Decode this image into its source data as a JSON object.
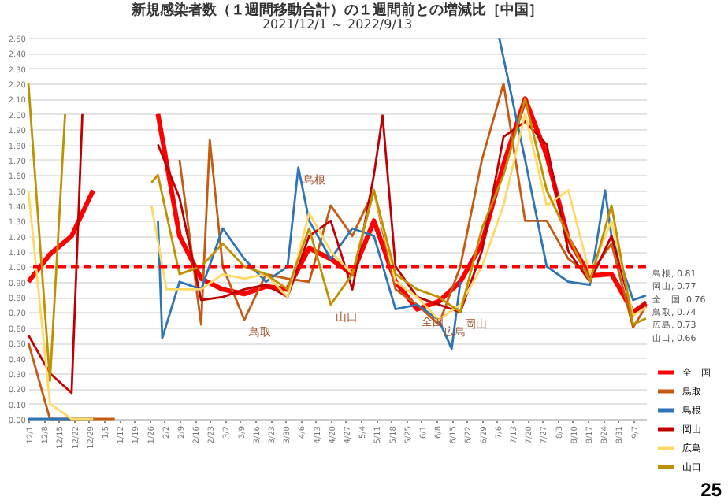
{
  "chart_data": {
    "type": "line",
    "title": "新規感染者数（１週間移動合計）の１週間前との増減比［中国］",
    "subtitle": "2021/12/1 ～ 2022/9/13",
    "x": [
      "2021-12-01",
      "2021-12-11",
      "2021-12-21",
      "2021-12-31",
      "2022-01-10",
      "2022-01-20",
      "2022-01-30",
      "2022-02-09",
      "2022-02-19",
      "2022-03-01",
      "2022-03-11",
      "2022-03-21",
      "2022-03-31",
      "2022-04-10",
      "2022-04-20",
      "2022-04-30",
      "2022-05-10",
      "2022-05-20",
      "2022-05-30",
      "2022-06-09",
      "2022-06-19",
      "2022-06-29",
      "2022-07-09",
      "2022-07-19",
      "2022-07-29",
      "2022-08-08",
      "2022-08-18",
      "2022-08-28",
      "2022-09-07",
      "2022-09-13"
    ],
    "series": [
      {
        "name": "全　国",
        "color": "#ff0000",
        "values": [
          0.9,
          1.08,
          1.2,
          1.5,
          null,
          null,
          2.0,
          1.2,
          0.92,
          0.85,
          0.82,
          0.87,
          0.85,
          1.12,
          1.05,
          0.95,
          1.3,
          0.9,
          0.72,
          0.77,
          0.9,
          1.15,
          1.67,
          2.1,
          1.73,
          1.18,
          0.94,
          0.95,
          0.7,
          0.76
        ],
        "value_labels": [
          null,
          null,
          null,
          null,
          null,
          null,
          null,
          null,
          null,
          null,
          null,
          null,
          null,
          null,
          null,
          null,
          null,
          null,
          null,
          null,
          null,
          null,
          null,
          null,
          null,
          null,
          null,
          null,
          null,
          "全　国, 0.76"
        ]
      },
      {
        "name": "鳥取",
        "color": "#c55a11",
        "x": [
          "2021-12-01",
          "2021-12-11",
          "2021-12-21",
          "2021-12-31",
          "2022-01-10",
          "2022-01-20",
          "2022-01-30",
          "2022-02-09",
          "2022-02-19",
          "2022-02-23",
          "2022-03-01",
          "2022-03-11",
          "2022-03-21",
          "2022-03-31",
          "2022-04-10",
          "2022-04-20",
          "2022-04-30",
          "2022-05-10",
          "2022-05-20",
          "2022-05-30",
          "2022-06-09",
          "2022-06-19",
          "2022-06-29",
          "2022-07-09",
          "2022-07-19",
          "2022-07-29",
          "2022-08-08",
          "2022-08-18",
          "2022-08-28",
          "2022-09-07",
          "2022-09-13"
        ],
        "values": [
          0.5,
          0,
          0,
          0,
          0,
          null,
          null,
          1.7,
          0.62,
          1.83,
          1.0,
          0.65,
          0.95,
          0.92,
          0.9,
          1.4,
          1.2,
          1.5,
          0.85,
          0.75,
          0.62,
          1.0,
          1.7,
          2.2,
          1.3,
          1.3,
          1.05,
          0.95,
          1.15,
          0.6,
          0.74
        ],
        "value_labels": [
          null,
          null,
          null,
          null,
          null,
          null,
          null,
          null,
          null,
          null,
          null,
          null,
          null,
          null,
          null,
          null,
          null,
          null,
          null,
          null,
          null,
          null,
          null,
          null,
          null,
          null,
          null,
          null,
          null,
          null,
          "鳥取, 0.74"
        ]
      },
      {
        "name": "島根",
        "color": "#2e75b6",
        "x": [
          "2021-12-01",
          "2021-12-11",
          "2021-12-21",
          "2021-12-31",
          "2022-01-10",
          "2022-01-20",
          "2022-01-30",
          "2022-02-01",
          "2022-02-09",
          "2022-02-19",
          "2022-03-01",
          "2022-03-11",
          "2022-03-21",
          "2022-03-31",
          "2022-04-05",
          "2022-04-10",
          "2022-04-20",
          "2022-04-30",
          "2022-05-10",
          "2022-05-20",
          "2022-05-30",
          "2022-06-09",
          "2022-06-15",
          "2022-06-19",
          "2022-06-24",
          "2022-07-07",
          "2022-07-19",
          "2022-07-29",
          "2022-08-08",
          "2022-08-18",
          "2022-08-25",
          "2022-08-28",
          "2022-09-07",
          "2022-09-13"
        ],
        "values": [
          0,
          0,
          0,
          0,
          null,
          null,
          1.3,
          0.53,
          0.9,
          0.85,
          1.25,
          1.05,
          0.9,
          1.0,
          1.65,
          1.3,
          1.05,
          1.25,
          1.2,
          0.72,
          0.75,
          0.65,
          0.46,
          0.9,
          null,
          2.5,
          1.7,
          1.0,
          0.9,
          0.88,
          1.5,
          1.2,
          0.78,
          0.81
        ],
        "value_labels": [
          null,
          null,
          null,
          null,
          null,
          null,
          null,
          null,
          null,
          null,
          null,
          null,
          null,
          null,
          null,
          null,
          null,
          null,
          null,
          null,
          null,
          null,
          null,
          null,
          null,
          null,
          null,
          null,
          null,
          null,
          null,
          null,
          null,
          "島根, 0.81"
        ]
      },
      {
        "name": "岡山",
        "color": "#c00000",
        "x": [
          "2021-12-01",
          "2021-12-11",
          "2021-12-21",
          "2021-12-26",
          "2021-12-31",
          "2022-01-10",
          "2022-01-20",
          "2022-01-30",
          "2022-02-09",
          "2022-02-19",
          "2022-03-01",
          "2022-03-11",
          "2022-03-21",
          "2022-03-31",
          "2022-04-10",
          "2022-04-20",
          "2022-04-30",
          "2022-05-10",
          "2022-05-14",
          "2022-05-20",
          "2022-05-30",
          "2022-06-09",
          "2022-06-19",
          "2022-06-29",
          "2022-07-09",
          "2022-07-19",
          "2022-07-29",
          "2022-08-08",
          "2022-08-18",
          "2022-08-28",
          "2022-09-07",
          "2022-09-13"
        ],
        "values": [
          0.55,
          0.3,
          0.17,
          2.0,
          null,
          null,
          null,
          1.8,
          1.45,
          0.78,
          0.8,
          0.85,
          0.88,
          0.8,
          1.2,
          1.3,
          0.85,
          1.6,
          1.99,
          1.0,
          0.8,
          0.75,
          0.7,
          1.1,
          1.85,
          1.95,
          1.8,
          1.1,
          0.9,
          1.2,
          0.68,
          0.77
        ],
        "value_labels": [
          null,
          null,
          null,
          null,
          null,
          null,
          null,
          null,
          null,
          null,
          null,
          null,
          null,
          null,
          null,
          null,
          null,
          null,
          null,
          null,
          null,
          null,
          null,
          null,
          null,
          null,
          null,
          null,
          null,
          null,
          null,
          "岡山, 0.77"
        ]
      },
      {
        "name": "広島",
        "color": "#ffd966",
        "x": [
          "2021-12-01",
          "2021-12-11",
          "2021-12-21",
          "2021-12-31",
          "2022-01-10",
          "2022-01-20",
          "2022-01-27",
          "2022-02-03",
          "2022-02-09",
          "2022-02-19",
          "2022-03-01",
          "2022-03-11",
          "2022-03-21",
          "2022-03-31",
          "2022-04-10",
          "2022-04-20",
          "2022-04-30",
          "2022-05-10",
          "2022-05-20",
          "2022-05-30",
          "2022-06-09",
          "2022-06-19",
          "2022-06-29",
          "2022-07-09",
          "2022-07-19",
          "2022-07-29",
          "2022-08-08",
          "2022-08-18",
          "2022-08-28",
          "2022-09-07",
          "2022-09-13"
        ],
        "values": [
          1.5,
          0.1,
          0,
          0,
          null,
          null,
          1.4,
          0.85,
          0.85,
          0.85,
          0.95,
          0.92,
          0.95,
          0.8,
          1.35,
          1.1,
          0.95,
          1.5,
          0.9,
          0.8,
          0.65,
          0.75,
          1.0,
          1.4,
          2.0,
          1.4,
          1.5,
          0.95,
          1.3,
          0.68,
          0.73
        ],
        "value_labels": [
          null,
          null,
          null,
          null,
          null,
          null,
          null,
          null,
          null,
          null,
          null,
          null,
          null,
          null,
          null,
          null,
          null,
          null,
          null,
          null,
          null,
          null,
          null,
          null,
          null,
          null,
          null,
          null,
          null,
          null,
          "広島, 0.73"
        ]
      },
      {
        "name": "山口",
        "color": "#bf9000",
        "x": [
          "2021-12-01",
          "2021-12-11",
          "2021-12-18",
          "2021-12-21",
          "2021-12-31",
          "2022-01-10",
          "2022-01-20",
          "2022-01-27",
          "2022-01-30",
          "2022-02-09",
          "2022-02-19",
          "2022-03-01",
          "2022-03-11",
          "2022-03-21",
          "2022-03-31",
          "2022-04-10",
          "2022-04-20",
          "2022-04-30",
          "2022-05-10",
          "2022-05-20",
          "2022-05-30",
          "2022-06-09",
          "2022-06-19",
          "2022-06-29",
          "2022-07-09",
          "2022-07-19",
          "2022-07-29",
          "2022-08-08",
          "2022-08-18",
          "2022-08-28",
          "2022-09-07",
          "2022-09-13"
        ],
        "values": [
          2.2,
          0.25,
          2.0,
          null,
          null,
          null,
          null,
          1.55,
          1.6,
          0.95,
          1.0,
          1.15,
          1.0,
          0.95,
          0.85,
          1.25,
          0.75,
          0.95,
          1.5,
          0.95,
          0.85,
          0.8,
          0.7,
          1.25,
          1.6,
          2.1,
          1.5,
          1.2,
          0.9,
          1.4,
          0.62,
          0.66
        ],
        "value_labels": [
          null,
          null,
          null,
          null,
          null,
          null,
          null,
          null,
          null,
          null,
          null,
          null,
          null,
          null,
          null,
          null,
          null,
          null,
          null,
          null,
          null,
          null,
          null,
          null,
          null,
          null,
          null,
          null,
          null,
          null,
          null,
          "山口, 0.66"
        ]
      }
    ],
    "xlim": [
      "2021-12-01",
      "2022-09-13"
    ],
    "xticks": [
      {
        "value": "2021-12-01",
        "label": "12/1"
      },
      {
        "value": "2021-12-08",
        "label": "12/8"
      },
      {
        "value": "2021-12-15",
        "label": "12/15"
      },
      {
        "value": "2021-12-22",
        "label": "12/22"
      },
      {
        "value": "2021-12-29",
        "label": "12/29"
      },
      {
        "value": "2022-01-05",
        "label": "1/5"
      },
      {
        "value": "2022-01-12",
        "label": "1/12"
      },
      {
        "value": "2022-01-19",
        "label": "1/19"
      },
      {
        "value": "2022-01-26",
        "label": "1/26"
      },
      {
        "value": "2022-02-02",
        "label": "2/2"
      },
      {
        "value": "2022-02-09",
        "label": "2/9"
      },
      {
        "value": "2022-02-16",
        "label": "2/16"
      },
      {
        "value": "2022-02-23",
        "label": "2/23"
      },
      {
        "value": "2022-03-02",
        "label": "3/2"
      },
      {
        "value": "2022-03-09",
        "label": "3/9"
      },
      {
        "value": "2022-03-16",
        "label": "3/16"
      },
      {
        "value": "2022-03-23",
        "label": "3/23"
      },
      {
        "value": "2022-03-30",
        "label": "3/30"
      },
      {
        "value": "2022-04-06",
        "label": "4/6"
      },
      {
        "value": "2022-04-13",
        "label": "4/13"
      },
      {
        "value": "2022-04-20",
        "label": "4/20"
      },
      {
        "value": "2022-04-27",
        "label": "4/27"
      },
      {
        "value": "2022-05-04",
        "label": "5/4"
      },
      {
        "value": "2022-05-11",
        "label": "5/11"
      },
      {
        "value": "2022-05-18",
        "label": "5/18"
      },
      {
        "value": "2022-05-25",
        "label": "5/25"
      },
      {
        "value": "2022-06-01",
        "label": "6/1"
      },
      {
        "value": "2022-06-08",
        "label": "6/8"
      },
      {
        "value": "2022-06-15",
        "label": "6/15"
      },
      {
        "value": "2022-06-22",
        "label": "6/22"
      },
      {
        "value": "2022-06-29",
        "label": "6/29"
      },
      {
        "value": "2022-07-06",
        "label": "7/6"
      },
      {
        "value": "2022-07-13",
        "label": "7/13"
      },
      {
        "value": "2022-07-20",
        "label": "7/20"
      },
      {
        "value": "2022-07-27",
        "label": "7/27"
      },
      {
        "value": "2022-08-03",
        "label": "8/3"
      },
      {
        "value": "2022-08-10",
        "label": "8/10"
      },
      {
        "value": "2022-08-17",
        "label": "8/17"
      },
      {
        "value": "2022-08-24",
        "label": "8/24"
      },
      {
        "value": "2022-08-31",
        "label": "8/31"
      },
      {
        "value": "2022-09-07",
        "label": "9/7"
      }
    ],
    "ylim": [
      0,
      2.5
    ],
    "yticks": [
      {
        "value": 0,
        "label": "0.00"
      },
      {
        "value": 0.1,
        "label": "0.10"
      },
      {
        "value": 0.2,
        "label": "0.20"
      },
      {
        "value": 0.3,
        "label": "0.30"
      },
      {
        "value": 0.4,
        "label": "0.40"
      },
      {
        "value": 0.5,
        "label": "0.50"
      },
      {
        "value": 0.6,
        "label": "0.60"
      },
      {
        "value": 0.7,
        "label": "0.70"
      },
      {
        "value": 0.8,
        "label": "0.80"
      },
      {
        "value": 0.9,
        "label": "0.90"
      },
      {
        "value": 1,
        "label": "1.00"
      },
      {
        "value": 1.1,
        "label": "1.10"
      },
      {
        "value": 1.2,
        "label": "1.20"
      },
      {
        "value": 1.3,
        "label": "1.30"
      },
      {
        "value": 1.4,
        "label": "1.40"
      },
      {
        "value": 1.5,
        "label": "1.50"
      },
      {
        "value": 1.6,
        "label": "1.60"
      },
      {
        "value": 1.7,
        "label": "1.70"
      },
      {
        "value": 1.8,
        "label": "1.80"
      },
      {
        "value": 1.9,
        "label": "1.90"
      },
      {
        "value": 2,
        "label": "2.00"
      },
      {
        "value": 2.1,
        "label": "2.10"
      },
      {
        "value": 2.2,
        "label": "2.20"
      },
      {
        "value": 2.3,
        "label": "2.30"
      },
      {
        "value": 2.4,
        "label": "2.40"
      },
      {
        "value": 2.5,
        "label": "2.50"
      }
    ],
    "ref_lines": [
      {
        "axis": "y",
        "value": 1,
        "color": "#ff0000",
        "line_style": "dashed"
      }
    ],
    "annotations": [
      {
        "text": "島根",
        "x": "2022-04-05",
        "y": 1.65
      },
      {
        "text": "鳥取",
        "x": "2022-03-11",
        "y": 0.65
      },
      {
        "text": "山口",
        "x": "2022-04-20",
        "y": 0.75
      },
      {
        "text": "全国",
        "x": "2022-05-30",
        "y": 0.72
      },
      {
        "text": "広島",
        "x": "2022-06-09",
        "y": 0.65
      },
      {
        "text": "岡山",
        "x": "2022-06-19",
        "y": 0.7
      },
      "25"
    ],
    "grid": "y",
    "legend": "bottom right",
    "line_style": "solid",
    "marker": "none"
  }
}
